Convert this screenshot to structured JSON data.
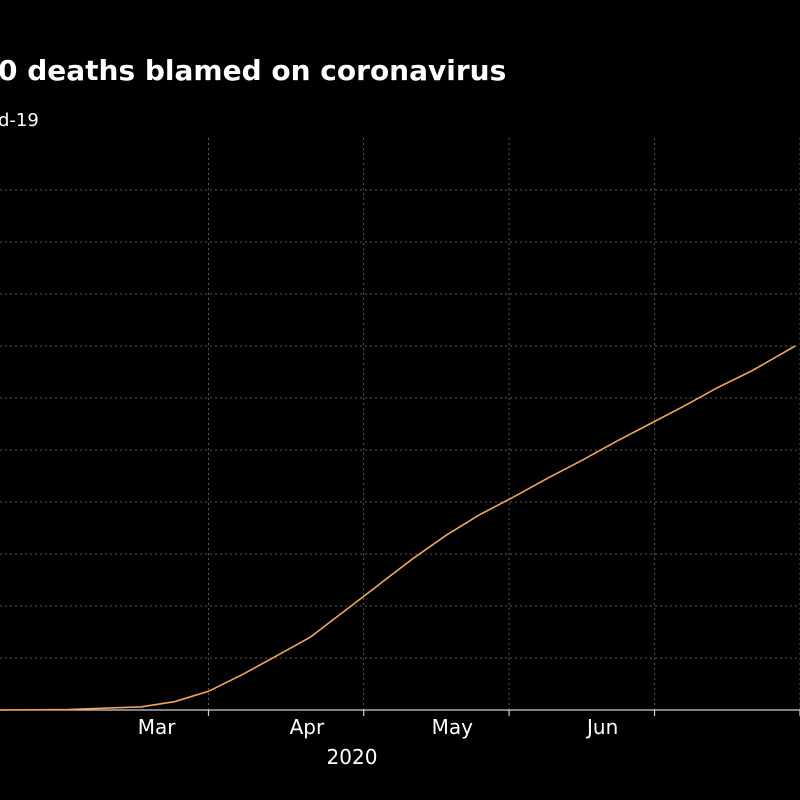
{
  "chart_data": {
    "type": "line",
    "title": "0 deaths blamed on coronavirus",
    "subtitle": "d-19",
    "x_range": [
      "2020-02-01",
      "2020-07-15"
    ],
    "x_ticks": [
      {
        "date": "2020-03-01",
        "label": "Mar"
      },
      {
        "date": "2020-04-01",
        "label": "Apr"
      },
      {
        "date": "2020-05-01",
        "label": "May"
      },
      {
        "date": "2020-06-01",
        "label": "Jun"
      }
    ],
    "x_gridlines": [
      "2020-03-15",
      "2020-04-16",
      "2020-05-16",
      "2020-06-15",
      "2020-07-15"
    ],
    "year_label": "2020",
    "y_range": [
      0,
      550
    ],
    "y_gridlines": [
      0,
      50,
      100,
      150,
      200,
      250,
      300,
      350,
      400,
      450,
      500
    ],
    "grid": true,
    "legend": "none",
    "series": [
      {
        "color": "#f2a65a",
        "x": [
          "2020-02-01",
          "2020-02-15",
          "2020-03-01",
          "2020-03-08",
          "2020-03-15",
          "2020-03-22",
          "2020-03-29",
          "2020-04-05",
          "2020-04-12",
          "2020-04-19",
          "2020-04-26",
          "2020-05-03",
          "2020-05-10",
          "2020-05-17",
          "2020-05-24",
          "2020-05-31",
          "2020-06-07",
          "2020-06-14",
          "2020-06-21",
          "2020-06-28",
          "2020-07-05",
          "2020-07-14"
        ],
        "y": [
          0,
          0.5,
          3,
          8,
          18,
          34,
          52,
          70,
          95,
          120,
          145,
          168,
          188,
          205,
          223,
          240,
          258,
          275,
          292,
          310,
          326,
          350
        ]
      }
    ]
  }
}
